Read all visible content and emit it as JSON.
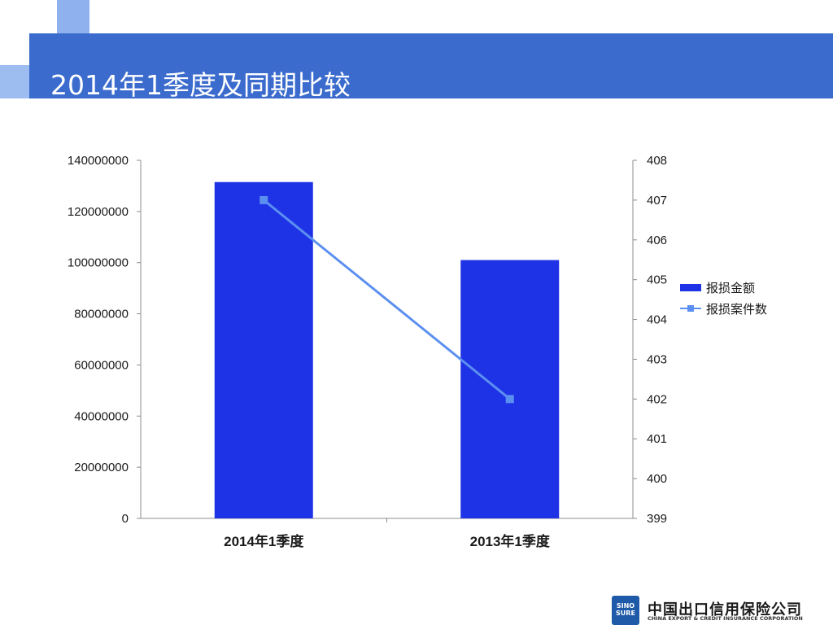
{
  "slide": {
    "title": "2014年1季度及同期比较"
  },
  "colors": {
    "band": "#3a6bcd",
    "bar": "#1e32e6",
    "line": "#5b8ff0"
  },
  "logo": {
    "badge_text": "SINO SURE",
    "name_cn": "中国出口信用保险公司",
    "name_en": "CHINA EXPORT & CREDIT INSURANCE CORPORATION"
  },
  "chart_data": {
    "type": "bar",
    "categories": [
      "2014年1季度",
      "2013年1季度"
    ],
    "series": [
      {
        "name": "报损金额",
        "type": "bar",
        "axis": "left",
        "values": [
          131500000,
          101000000
        ]
      },
      {
        "name": "报损案件数",
        "type": "line",
        "axis": "right",
        "values": [
          407,
          402
        ]
      }
    ],
    "y_left": {
      "ylim": [
        0,
        140000000
      ],
      "ticks": [
        "0",
        "20000000",
        "40000000",
        "60000000",
        "80000000",
        "100000000",
        "120000000",
        "140000000"
      ]
    },
    "y_right": {
      "ylim": [
        399,
        408
      ],
      "ticks": [
        "399",
        "400",
        "401",
        "402",
        "403",
        "404",
        "405",
        "406",
        "407",
        "408"
      ]
    },
    "legend_position": "right",
    "grid": false
  }
}
